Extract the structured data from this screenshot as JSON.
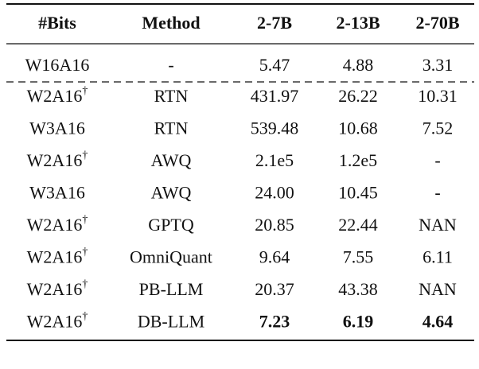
{
  "table": {
    "header": [
      "#Bits",
      "Method",
      "2-7B",
      "2-13B",
      "2-70B"
    ],
    "baseline": {
      "bits": "W16A16",
      "method": "-",
      "values": [
        "5.47",
        "4.88",
        "3.31"
      ]
    },
    "rows": [
      {
        "bits": "W2A16",
        "note": "†",
        "method": "RTN",
        "values": [
          "431.97",
          "26.22",
          "10.31"
        ]
      },
      {
        "bits": "W3A16",
        "method": "RTN",
        "values": [
          "539.48",
          "10.68",
          "7.52"
        ]
      },
      {
        "bits": "W2A16",
        "note": "†",
        "method": "AWQ",
        "values": [
          "2.1e5",
          "1.2e5",
          "-"
        ]
      },
      {
        "bits": "W3A16",
        "method": "AWQ",
        "values": [
          "24.00",
          "10.45",
          "-"
        ]
      },
      {
        "bits": "W2A16",
        "note": "†",
        "method": "GPTQ",
        "values": [
          "20.85",
          "22.44",
          "NAN"
        ]
      },
      {
        "bits": "W2A16",
        "note": "†",
        "method": "OmniQuant",
        "values": [
          "9.64",
          "7.55",
          "6.11"
        ]
      },
      {
        "bits": "W2A16",
        "note": "†",
        "method": "PB-LLM",
        "values": [
          "20.37",
          "43.38",
          "NAN"
        ]
      },
      {
        "bits": "W2A16",
        "note": "†",
        "method": "DB-LLM",
        "values": [
          "7.23",
          "6.19",
          "4.64"
        ],
        "bold": true
      }
    ]
  }
}
